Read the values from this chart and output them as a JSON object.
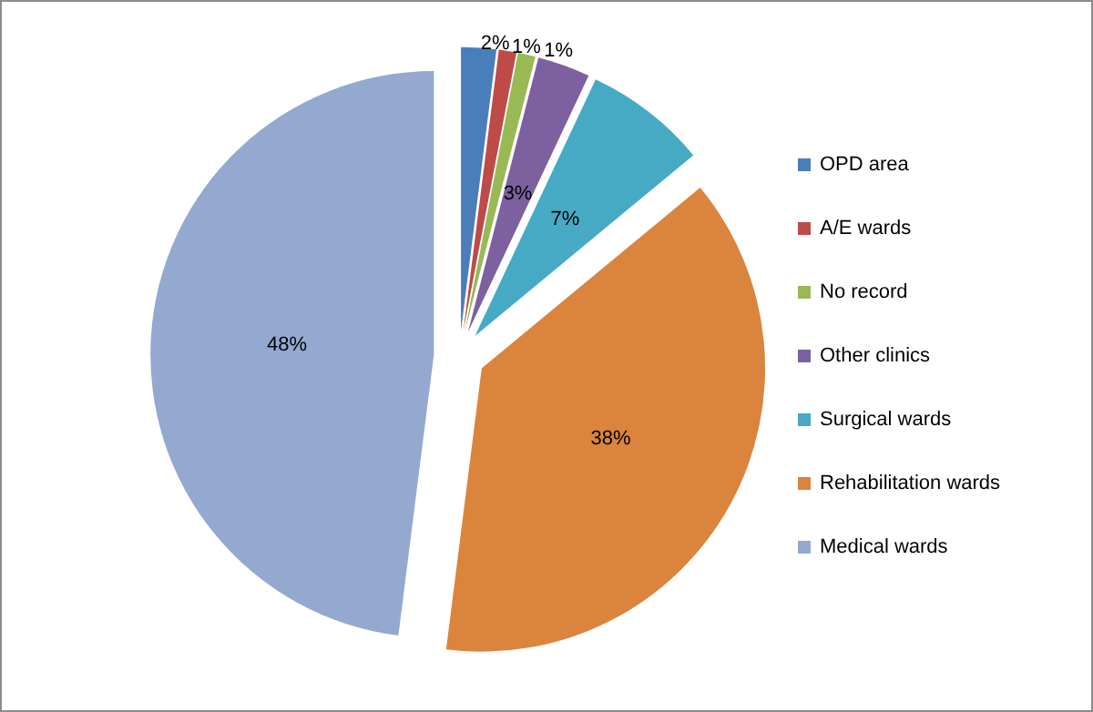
{
  "chart_data": {
    "type": "pie",
    "categories": [
      "OPD area",
      "A/E wards",
      "No record",
      "Other clinics",
      "Surgical wards",
      "Rehabilitation wards",
      "Medical wards"
    ],
    "values": [
      2,
      1,
      1,
      3,
      7,
      38,
      48
    ],
    "colors": [
      "#4a7ebb",
      "#be4b48",
      "#98b954",
      "#7d60a0",
      "#46aac5",
      "#db843d",
      "#93a9d0"
    ],
    "value_labels": [
      "2%",
      "1%",
      "1%",
      "3%",
      "7%",
      "38%",
      "48%"
    ],
    "legend": "right"
  }
}
